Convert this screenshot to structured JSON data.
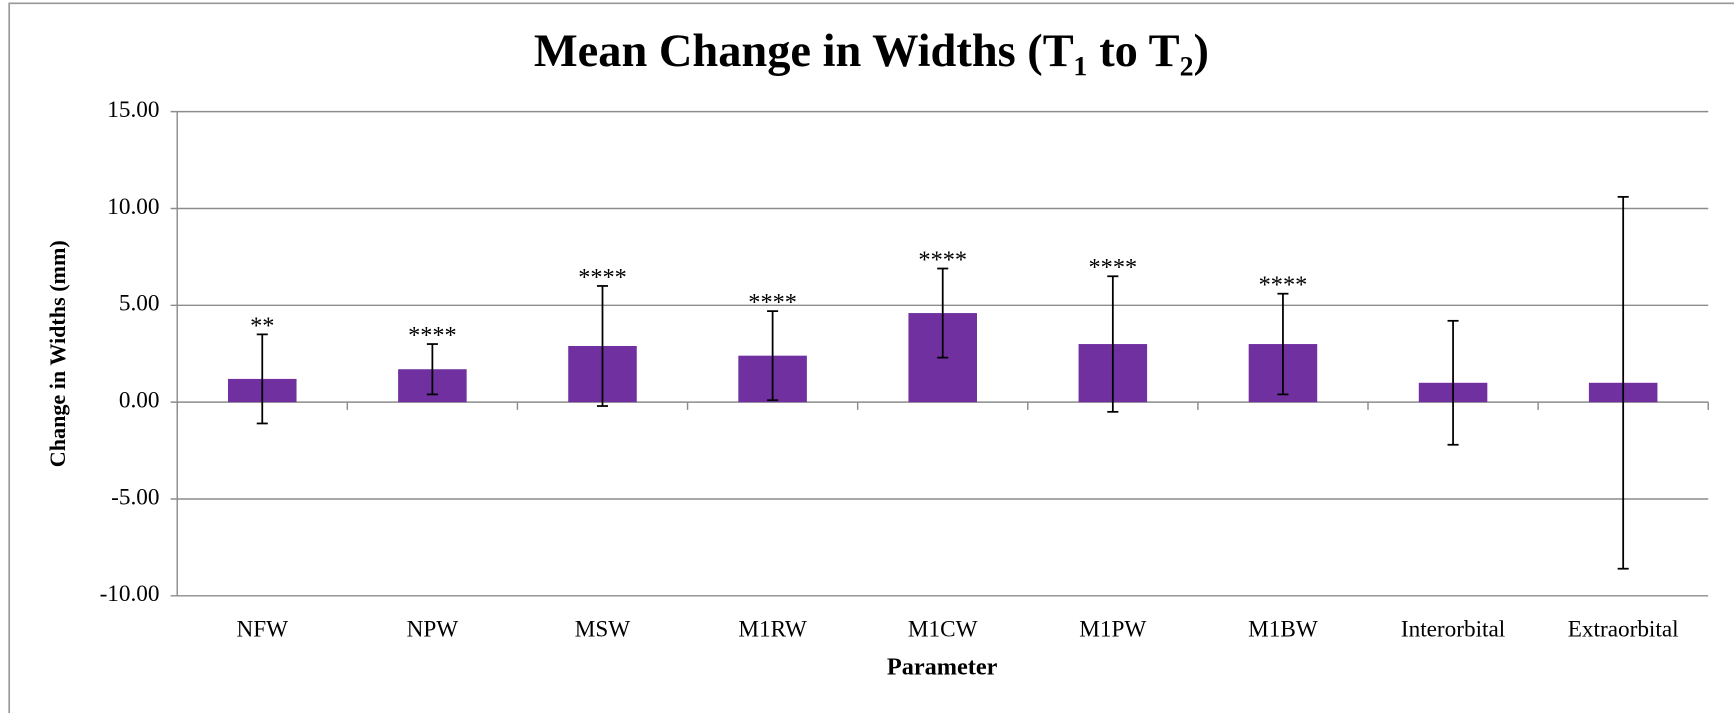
{
  "chart_data": {
    "type": "bar",
    "title": "Mean Change in Widths (T₁ to T₂)",
    "x_label": "Parameter",
    "y_label": "Change in Widths (mm)",
    "categories": [
      "NFW",
      "NPW",
      "MSW",
      "M1RW",
      "M1CW",
      "M1PW",
      "M1BW",
      "Interorbital",
      "Extraorbital"
    ],
    "values": [
      1.2,
      1.7,
      2.9,
      2.4,
      4.6,
      3.0,
      3.0,
      1.0,
      1.0
    ],
    "errors": [
      2.3,
      1.3,
      3.1,
      2.3,
      2.3,
      3.5,
      2.6,
      3.2,
      9.6
    ],
    "annotations": [
      "**",
      "****",
      "****",
      "****",
      "****",
      "****",
      "****",
      null,
      null
    ],
    "color": "#7030a0",
    "ylim": [
      -10,
      15
    ],
    "yticks": [
      {
        "value": -10,
        "label": "-10.00"
      },
      {
        "value": -5,
        "label": "-5.00"
      },
      {
        "value": 0,
        "label": "0.00"
      },
      {
        "value": 5,
        "label": "5.00"
      },
      {
        "value": 10,
        "label": "10.00"
      },
      {
        "value": 15,
        "label": "15.00"
      }
    ],
    "grid": true
  }
}
